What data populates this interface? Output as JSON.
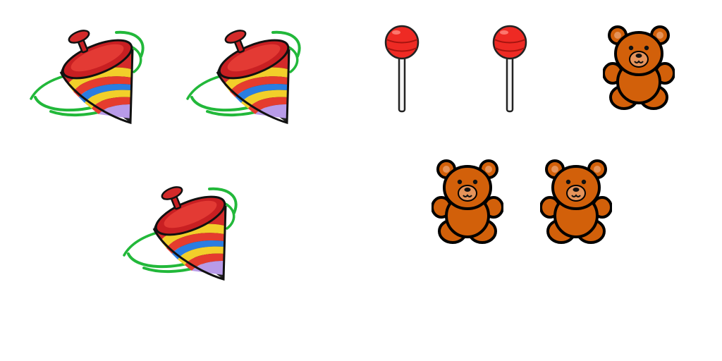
{
  "scene": {
    "items": [
      {
        "kind": "spinning-top",
        "icon": "spinning-top-icon"
      },
      {
        "kind": "spinning-top",
        "icon": "spinning-top-icon"
      },
      {
        "kind": "lollipop",
        "icon": "lollipop-icon"
      },
      {
        "kind": "lollipop",
        "icon": "lollipop-icon"
      },
      {
        "kind": "teddy-bear",
        "icon": "teddy-bear-icon"
      },
      {
        "kind": "spinning-top",
        "icon": "spinning-top-icon"
      },
      {
        "kind": "teddy-bear",
        "icon": "teddy-bear-icon"
      },
      {
        "kind": "teddy-bear",
        "icon": "teddy-bear-icon"
      }
    ],
    "colors": {
      "background": "#ffffff",
      "top_body": "#d32a2a",
      "top_stripes": [
        "#f2cf2a",
        "#2a7de1",
        "#e53c2e",
        "#8a4fc8"
      ],
      "top_motion": "#22b83a",
      "lollipop_candy": "#ee2a24",
      "bear_fur": "#d2600a",
      "bear_snout": "#e5935a",
      "outline": "#000000"
    }
  }
}
